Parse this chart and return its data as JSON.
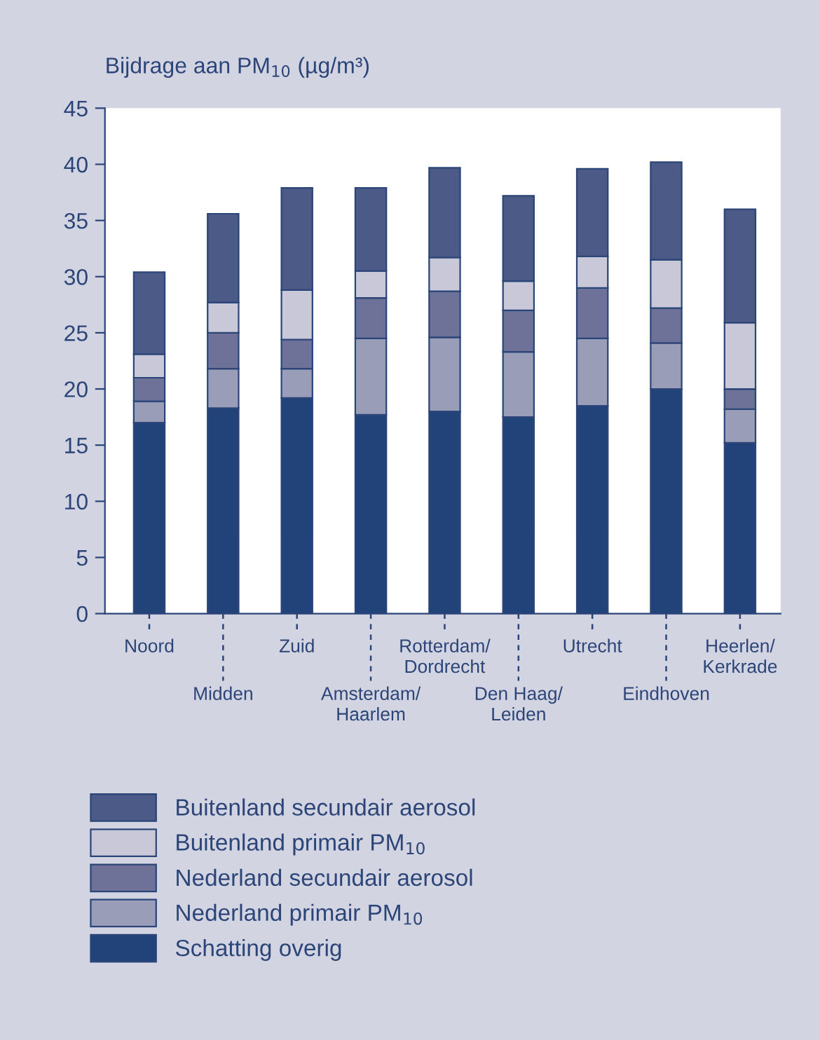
{
  "chart_data": {
    "type": "bar",
    "stacked": true,
    "ylabel": "Bijdrage aan PM$_{10}$ (µg/m³)",
    "categories": [
      "Noord",
      "Midden",
      "Zuid",
      "Amsterdam/\nHaarlem",
      "Rotterdam/\nDordrecht",
      "Den Haag/\nLeiden",
      "Utrecht",
      "Eindhoven",
      "Heerlen/\nKerkrade"
    ],
    "series": [
      {
        "name": "Schatting overig",
        "color": "#22437a",
        "values": [
          17.0,
          18.3,
          19.2,
          17.7,
          18.0,
          17.5,
          18.5,
          20.0,
          15.2
        ]
      },
      {
        "name": "Nederland primair PM$_{10}$",
        "color": "#9a9db8",
        "values": [
          1.9,
          3.5,
          2.6,
          6.8,
          6.6,
          5.8,
          6.0,
          4.1,
          3.0
        ]
      },
      {
        "name": "Nederland secundair aerosol",
        "color": "#6e7299",
        "values": [
          2.1,
          3.2,
          2.6,
          3.6,
          4.1,
          3.7,
          4.5,
          3.1,
          1.8
        ]
      },
      {
        "name": "Buitenland primair PM$_{10}$",
        "color": "#c8c8d8",
        "values": [
          2.1,
          2.7,
          4.4,
          2.4,
          3.0,
          2.6,
          2.8,
          4.3,
          5.9
        ]
      },
      {
        "name": "Buitenland secundair aerosol",
        "color": "#4b5a87",
        "values": [
          7.3,
          7.9,
          9.1,
          7.4,
          8.0,
          7.6,
          7.8,
          8.7,
          10.1
        ]
      }
    ],
    "ylim": [
      0,
      45
    ],
    "yticks": [
      0,
      5,
      10,
      15,
      20,
      25,
      30,
      35,
      40,
      45
    ],
    "grid": false,
    "legend": "bottom"
  }
}
